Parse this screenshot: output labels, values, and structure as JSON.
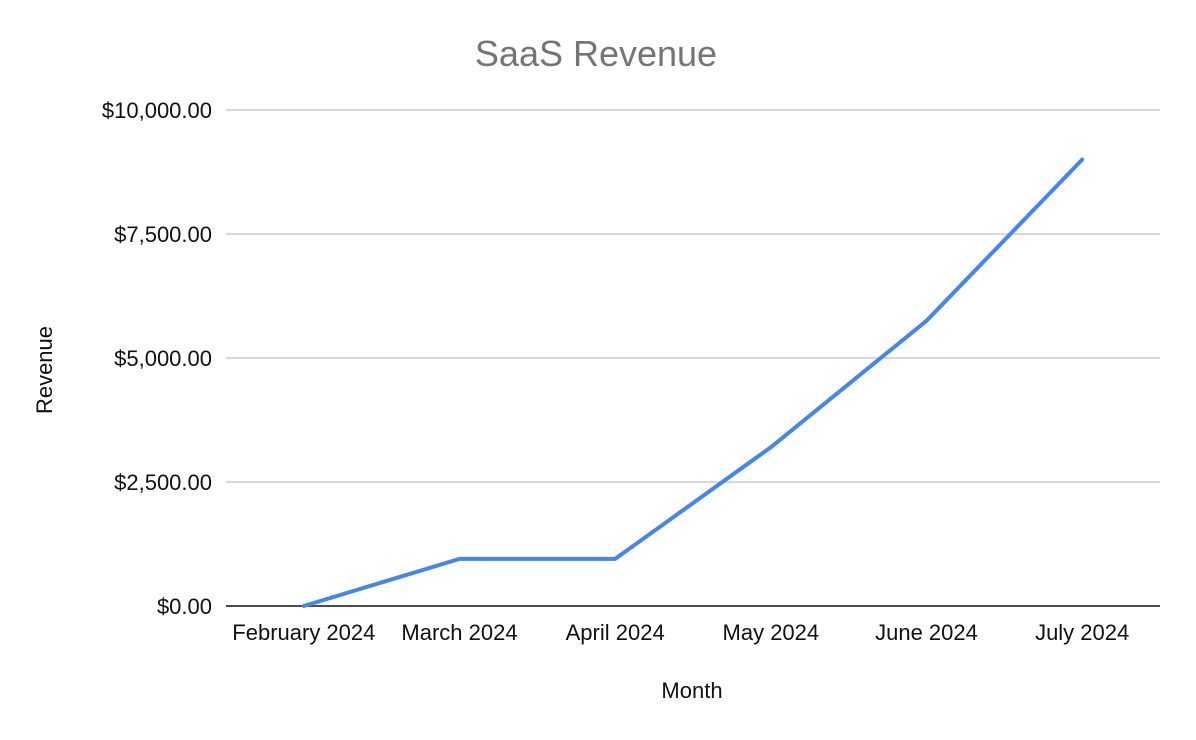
{
  "chart_data": {
    "type": "line",
    "title": "SaaS Revenue",
    "xlabel": "Month",
    "ylabel": "Revenue",
    "categories": [
      "February 2024",
      "March 2024",
      "April 2024",
      "May 2024",
      "June 2024",
      "July 2024"
    ],
    "series": [
      {
        "values": [
          0,
          950,
          950,
          3200,
          5750,
          9000
        ]
      }
    ],
    "ylim": [
      0,
      10000
    ],
    "yticks": [
      0,
      2500,
      5000,
      7500,
      10000
    ],
    "ytick_labels": [
      "$0.00",
      "$2,500.00",
      "$5,000.00",
      "$7,500.00",
      "$10,000.00"
    ],
    "grid": true,
    "legend": "none",
    "colors": {
      "series": "#4285f4",
      "grid": "#cccccc",
      "axis": "#333333",
      "title": "#757575",
      "text": "#111111"
    }
  }
}
